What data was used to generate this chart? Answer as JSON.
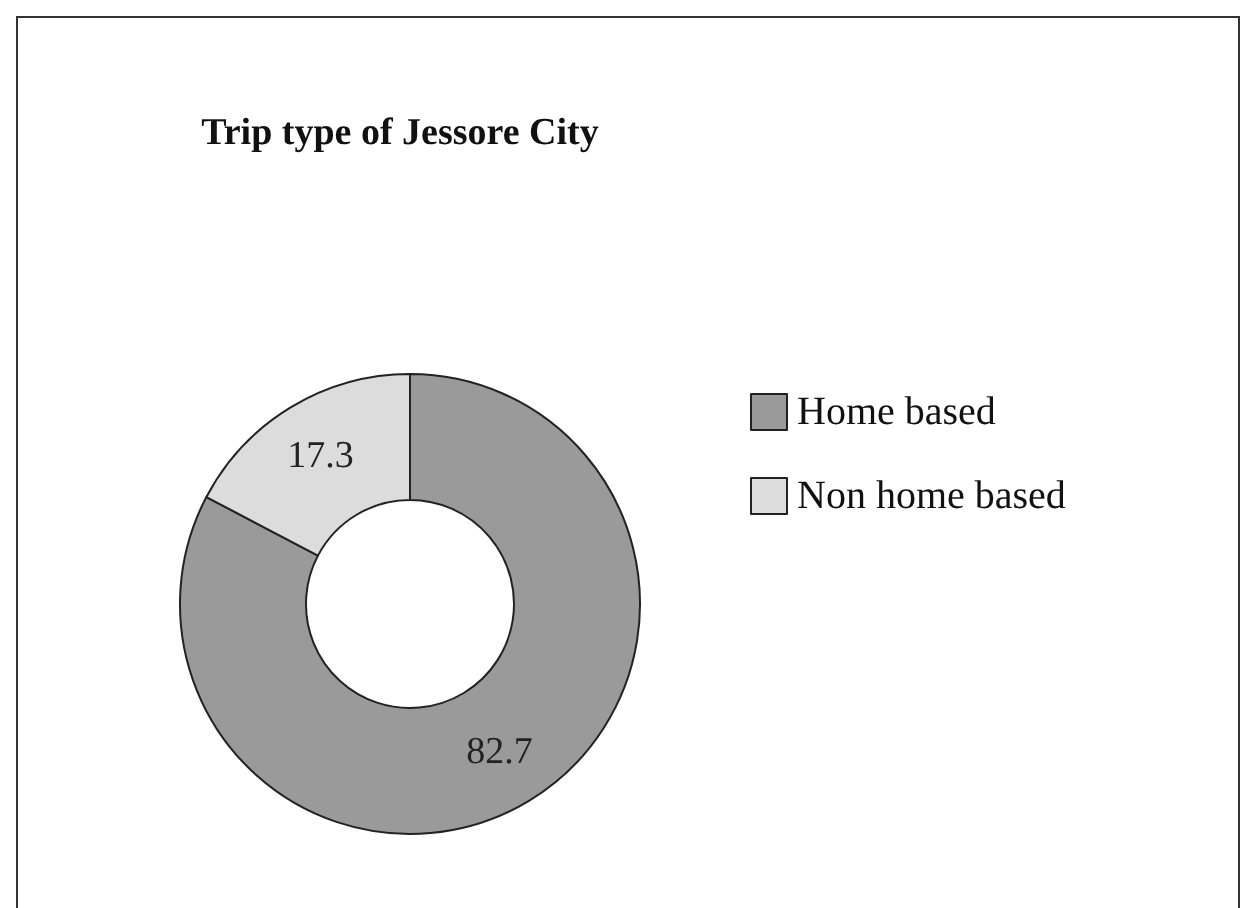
{
  "chart_data": {
    "type": "donut",
    "title": "Trip type of Jessore City",
    "categories": [
      "Home based",
      "Non home based"
    ],
    "values": [
      82.7,
      17.3
    ],
    "colors": [
      "#9a9a9a",
      "#dcdcdc"
    ],
    "data_labels": true,
    "legend": "right"
  }
}
